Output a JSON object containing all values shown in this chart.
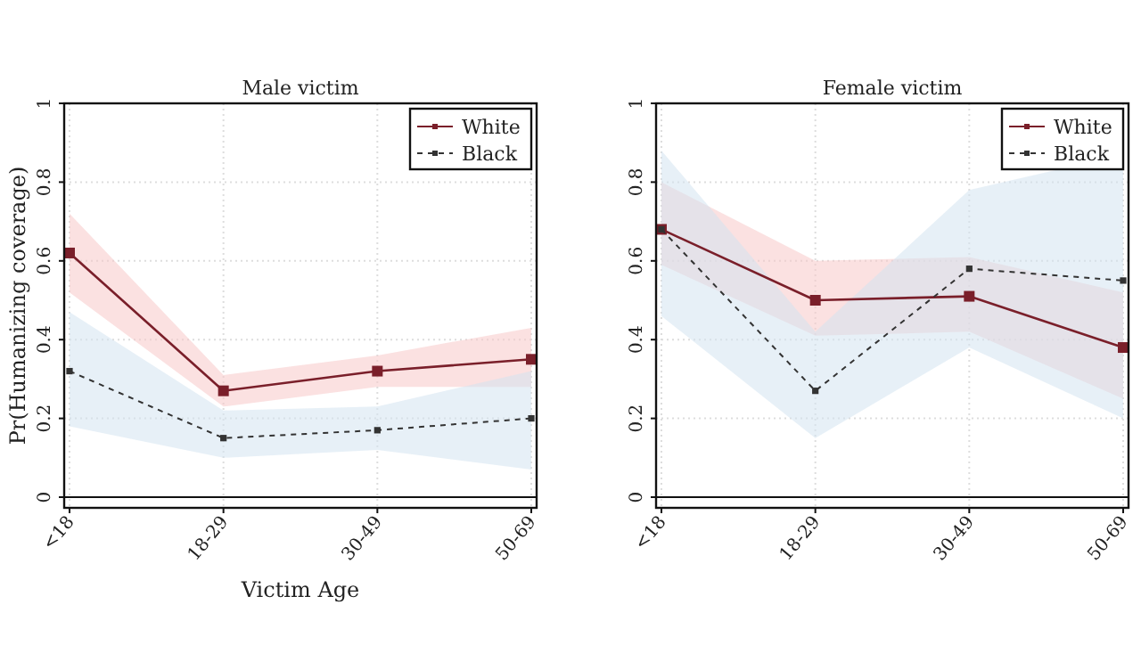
{
  "chart_data": [
    {
      "type": "line",
      "title": "Male victim",
      "xlabel": "Victim Age",
      "ylabel": "Pr(Humanizing coverage)",
      "categories": [
        "<18",
        "18-29",
        "30-49",
        "50-69"
      ],
      "ylim": [
        0,
        1
      ],
      "yticks": [
        0,
        0.2,
        0.4,
        0.6,
        0.8,
        1
      ],
      "grid": true,
      "legend": "top right",
      "marker": "square",
      "series": [
        {
          "name": "White",
          "color": "#7a1f2a",
          "line_style": "solid",
          "values": [
            0.62,
            0.27,
            0.32,
            0.35
          ],
          "lower": [
            0.52,
            0.23,
            0.28,
            0.28
          ],
          "upper": [
            0.72,
            0.31,
            0.36,
            0.43
          ]
        },
        {
          "name": "Black",
          "color": "#333333",
          "line_style": "dashed",
          "values": [
            0.32,
            0.15,
            0.17,
            0.2
          ],
          "lower": [
            0.18,
            0.1,
            0.12,
            0.07
          ],
          "upper": [
            0.47,
            0.22,
            0.23,
            0.32
          ]
        }
      ]
    },
    {
      "type": "line",
      "title": "Female victim",
      "categories": [
        "<18",
        "18-29",
        "30-49",
        "50-69"
      ],
      "ylim": [
        0,
        1
      ],
      "yticks": [
        0,
        0.2,
        0.4,
        0.6,
        0.8,
        1
      ],
      "grid": true,
      "legend": "top right",
      "marker": "square",
      "series": [
        {
          "name": "White",
          "color": "#7a1f2a",
          "line_style": "solid",
          "values": [
            0.68,
            0.5,
            0.51,
            0.38
          ],
          "lower": [
            0.59,
            0.41,
            0.42,
            0.25
          ],
          "upper": [
            0.8,
            0.6,
            0.61,
            0.52
          ]
        },
        {
          "name": "Black",
          "color": "#333333",
          "line_style": "dashed",
          "values": [
            0.68,
            0.27,
            0.58,
            0.55
          ],
          "lower": [
            0.46,
            0.15,
            0.38,
            0.2
          ],
          "upper": [
            0.88,
            0.42,
            0.78,
            0.87
          ]
        }
      ]
    }
  ]
}
